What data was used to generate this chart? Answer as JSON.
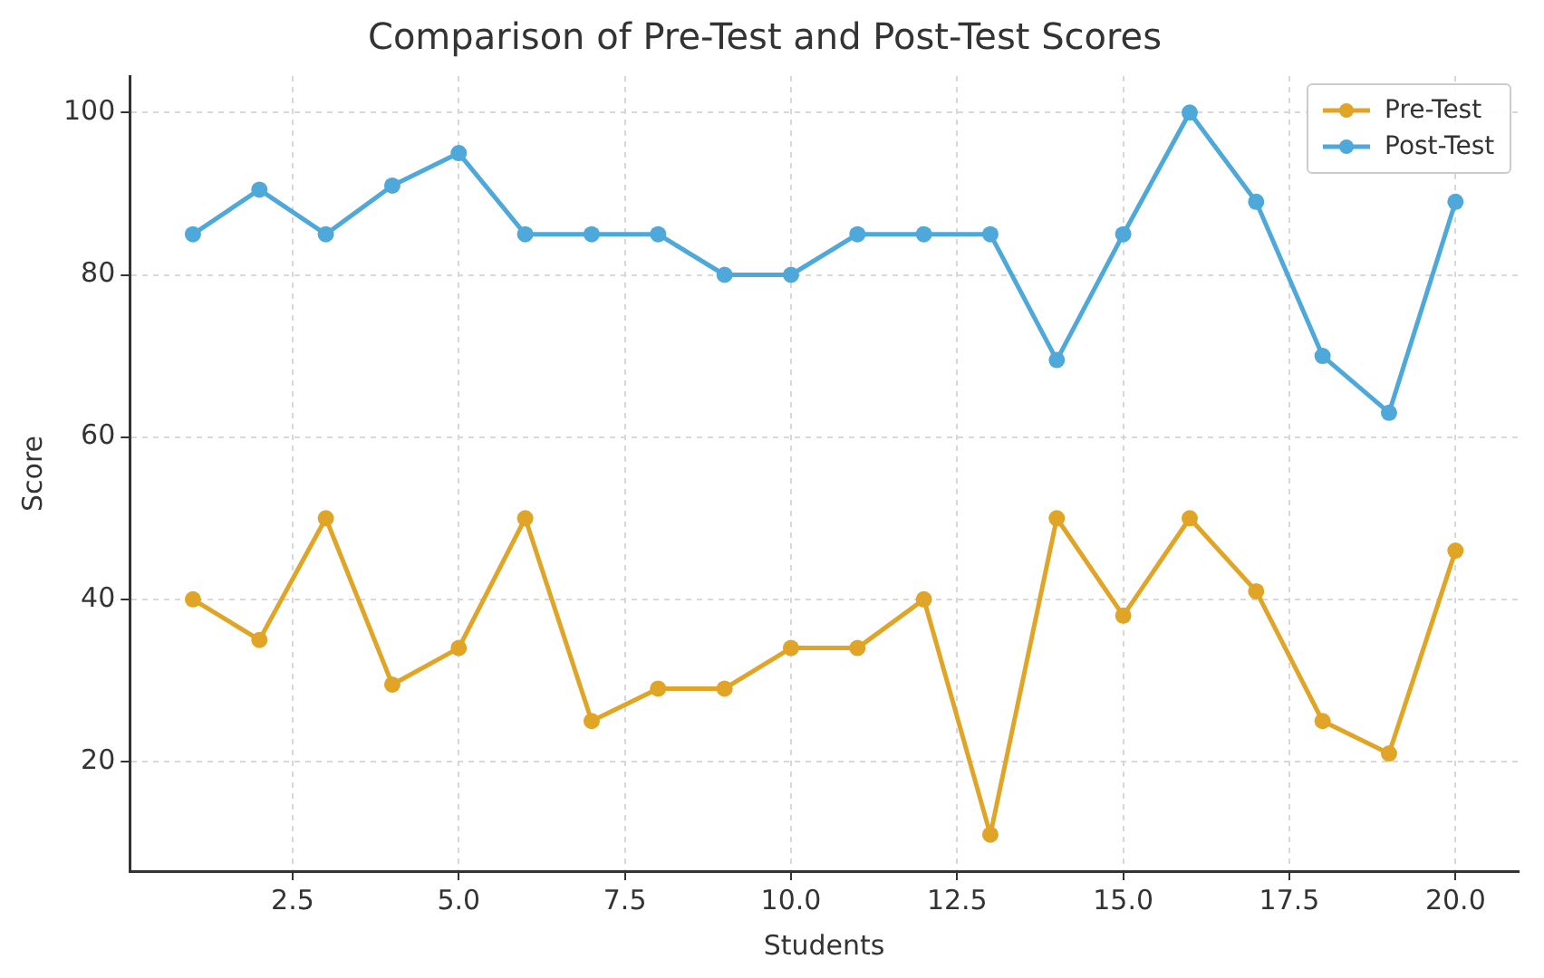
{
  "chart_data": {
    "type": "line",
    "title": "Comparison of Pre-Test and Post-Test Scores",
    "xlabel": "Students",
    "ylabel": "Score",
    "x": [
      1,
      2,
      3,
      4,
      5,
      6,
      7,
      8,
      9,
      10,
      11,
      12,
      13,
      14,
      15,
      16,
      17,
      18,
      19,
      20
    ],
    "series": [
      {
        "name": "Pre-Test",
        "color": "#e0a526",
        "values": [
          40,
          35,
          50,
          29.5,
          34,
          50,
          25,
          29,
          29,
          34,
          34,
          40,
          11,
          50,
          38,
          50,
          41,
          25,
          21,
          46
        ]
      },
      {
        "name": "Post-Test",
        "color": "#4ea8d9",
        "values": [
          85,
          90.5,
          85,
          91,
          95,
          85,
          85,
          85,
          80,
          80,
          85,
          85,
          85,
          69.5,
          85,
          100,
          89,
          70,
          63,
          89
        ]
      }
    ],
    "xlim": [
      0.05,
      20.95
    ],
    "xticks": [
      {
        "value": 2.5,
        "label": "2.5"
      },
      {
        "value": 5,
        "label": "5.0"
      },
      {
        "value": 7.5,
        "label": "7.5"
      },
      {
        "value": 10,
        "label": "10.0"
      },
      {
        "value": 12.5,
        "label": "12.5"
      },
      {
        "value": 15,
        "label": "15.0"
      },
      {
        "value": 17.5,
        "label": "17.5"
      },
      {
        "value": 20,
        "label": "20.0"
      }
    ],
    "ylim": [
      6.5,
      104.5
    ],
    "yticks": [
      20,
      40,
      60,
      80,
      100
    ],
    "grid": true,
    "legend": "top right",
    "marker": "circle",
    "line_style": "solid"
  }
}
